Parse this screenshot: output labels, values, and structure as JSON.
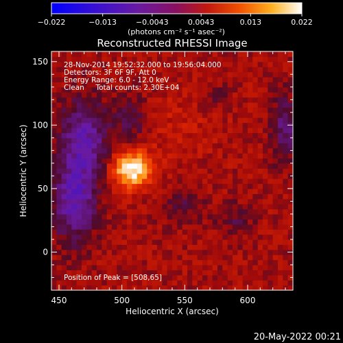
{
  "chart_data": {
    "type": "heatmap",
    "title": "Reconstructed RHESSI Image",
    "xlabel": "Heliocentric X (arcsec)",
    "ylabel": "Heliocentric Y (arcsec)",
    "xlim": [
      444,
      636
    ],
    "ylim": [
      -30,
      158
    ],
    "xticks": [
      450,
      500,
      550,
      600
    ],
    "yticks": [
      0,
      50,
      100,
      150
    ],
    "colorbar": {
      "min": -0.022,
      "max": 0.022,
      "tick_labels": [
        "-0.022",
        "-0.013",
        "-0.0043",
        "0.0043",
        "0.013",
        "0.022"
      ],
      "unit_label": "(photons cm⁻² s⁻¹ asec⁻²)"
    },
    "annotations": [
      "28-Nov-2014 19:52:32.000 to 19:56:04.000",
      "Detectors: 3F 6F 9F, Att 0",
      "Energy Range: 6.0 - 12.0 keV",
      "Clean     Total counts: 2.30E+04"
    ],
    "peak_label": "Position of Peak = [508,65]",
    "peak": {
      "x": 508,
      "y": 65,
      "value": 0.022
    },
    "timestamp": "20-May-2022 00:21"
  }
}
